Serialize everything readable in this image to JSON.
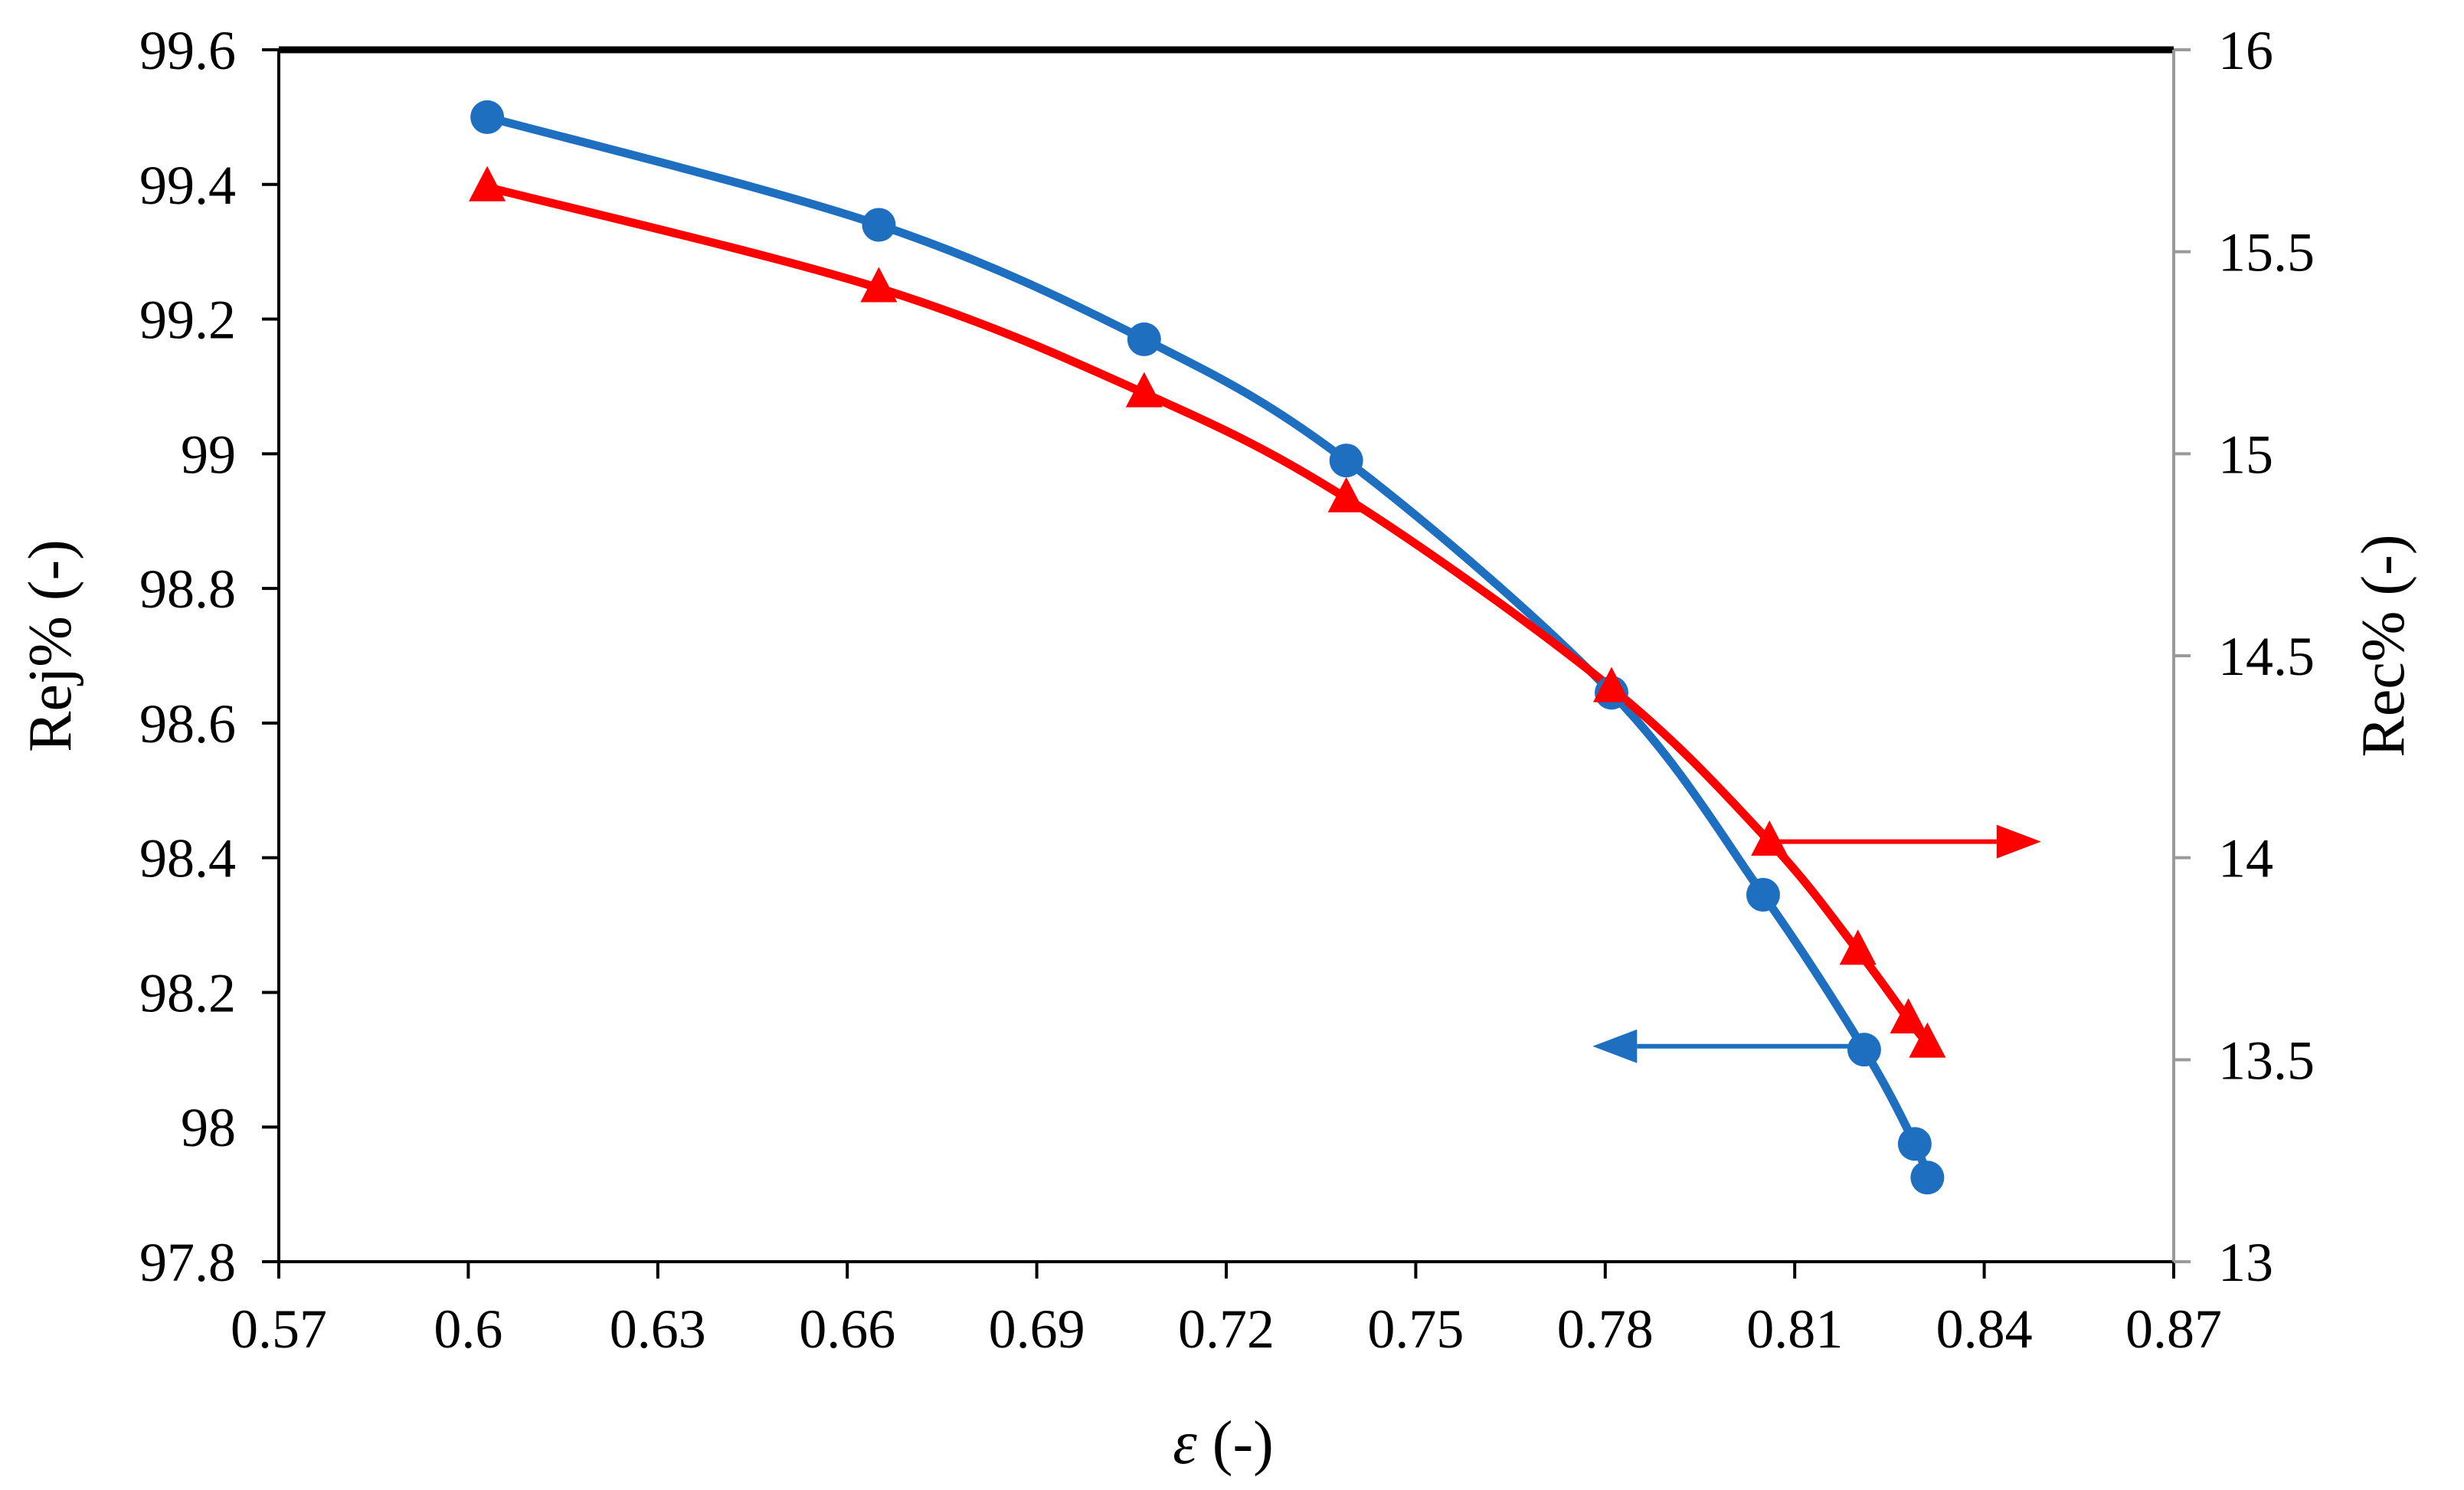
{
  "chart_data": {
    "type": "line",
    "xlabel": "ε (-)",
    "ylabel_left": "Rej% (-)",
    "ylabel_right": "Rec% (-)",
    "xlim": [
      0.57,
      0.87
    ],
    "ylim_left": [
      97.8,
      99.6
    ],
    "ylim_right": [
      13,
      16
    ],
    "x_ticks": [
      "0.57",
      "0.6",
      "0.63",
      "0.66",
      "0.69",
      "0.72",
      "0.75",
      "0.78",
      "0.81",
      "0.84",
      "0.87"
    ],
    "y_left_ticks": [
      "97.8",
      "98",
      "98.2",
      "98.4",
      "98.6",
      "98.8",
      "99",
      "99.2",
      "99.4",
      "99.6"
    ],
    "y_right_ticks": [
      "13",
      "13.5",
      "14",
      "14.5",
      "15",
      "15.5",
      "16"
    ],
    "grid": false,
    "legend": "none",
    "series": [
      {
        "axis": "left",
        "color": "#1F6FC0",
        "marker": "circle",
        "points": [
          [
            0.603,
            99.5
          ],
          [
            0.665,
            99.34
          ],
          [
            0.707,
            99.17
          ],
          [
            0.739,
            98.99
          ],
          [
            0.781,
            98.645
          ],
          [
            0.805,
            98.345
          ],
          [
            0.821,
            98.115
          ],
          [
            0.829,
            97.975
          ],
          [
            0.831,
            97.925
          ]
        ]
      },
      {
        "axis": "right",
        "color": "#FF0000",
        "marker": "triangle",
        "points": [
          [
            0.603,
            15.66
          ],
          [
            0.665,
            15.41
          ],
          [
            0.707,
            15.15
          ],
          [
            0.739,
            14.89
          ],
          [
            0.781,
            14.42
          ],
          [
            0.806,
            14.04
          ],
          [
            0.82,
            13.77
          ],
          [
            0.828,
            13.6
          ],
          [
            0.831,
            13.54
          ]
        ]
      }
    ],
    "annotations": [
      {
        "type": "arrow",
        "direction": "left",
        "color": "#1F6FC0",
        "axis": "left",
        "from": [
          0.821,
          98.12
        ],
        "to": [
          0.778,
          98.12
        ]
      },
      {
        "type": "arrow",
        "direction": "right",
        "color": "#FF0000",
        "axis": "right",
        "from": [
          0.806,
          14.04
        ],
        "to": [
          0.849,
          14.04
        ]
      }
    ]
  }
}
